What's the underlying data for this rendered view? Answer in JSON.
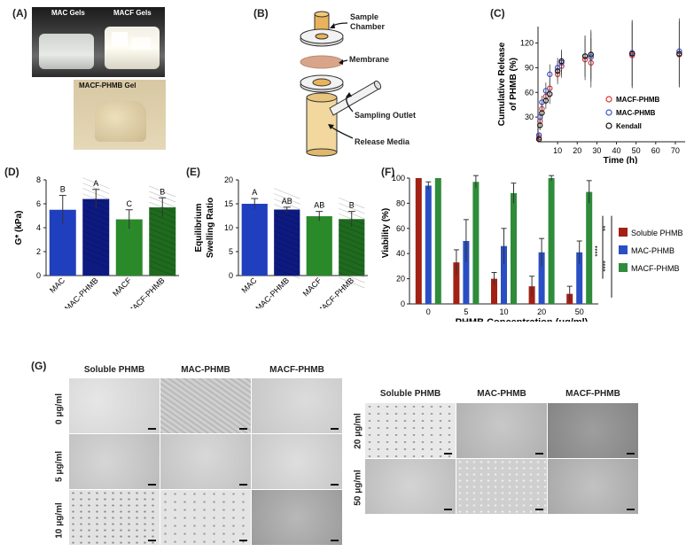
{
  "panels": {
    "A": {
      "label": "(A)",
      "photo1_labels": [
        "MAC Gels",
        "MACF Gels"
      ],
      "photo2_label": "MACF-PHMB Gel"
    },
    "B": {
      "label": "(B)",
      "callouts": [
        "Sample Chamber",
        "Membrane",
        "Sampling Outlet",
        "Release Media"
      ]
    },
    "C": {
      "label": "(C)",
      "ylabel_line1": "Cumulative Release",
      "ylabel_line2": "of PHMB (%)",
      "xlabel": "Time (h)",
      "legend": [
        "MACF-PHMB",
        "MAC-PHMB",
        "Kendall"
      ]
    },
    "D": {
      "label": "(D)",
      "ylabel": "G* (kPa)"
    },
    "E": {
      "label": "(E)",
      "ylabel_line1": "Equilibrium",
      "ylabel_line2": "Swelling Ratio"
    },
    "F": {
      "label": "(F)",
      "ylabel": "Viability (%)",
      "xlabel": "PHMB Concentration (μg/ml)",
      "legend": [
        "Soluble PHMB",
        "MAC-PHMB",
        "MACF-PHMB"
      ],
      "sig": [
        "**",
        "****",
        "****"
      ]
    },
    "G": {
      "label": "(G)",
      "left_cols": [
        "Soluble PHMB",
        "MAC-PHMB",
        "MACF-PHMB"
      ],
      "left_rows": [
        "0 μg/ml",
        "5 μg/ml",
        "10 μg/ml"
      ],
      "right_cols": [
        "Soluble PHMB",
        "MAC-PHMB",
        "MACF-PHMB"
      ],
      "right_rows": [
        "20 μg/ml",
        "50 μg/ml"
      ]
    }
  },
  "colors": {
    "mac": "#1f3fbf",
    "macphmb": "#0d1a80",
    "macf": "#2a8a2a",
    "macfphmb": "#1f6a1f",
    "soluble": "#a32015",
    "mac_f": "#2a4fc4",
    "macf_f": "#2e8c3a"
  },
  "chart_data": [
    {
      "id": "C",
      "type": "scatter",
      "xlabel": "Time (h)",
      "ylabel": "Cumulative Release of PHMB (%)",
      "xlim": [
        0,
        75
      ],
      "ylim": [
        0,
        140
      ],
      "xticks": [
        0,
        10,
        20,
        30,
        40,
        50,
        60,
        70
      ],
      "yticks": [
        0,
        30,
        60,
        90,
        120
      ],
      "xticklabels": [
        "10",
        "20",
        "30",
        "40",
        "50",
        "60",
        "70"
      ],
      "yticklabels": [
        "30",
        "60",
        "90",
        "120"
      ],
      "legend_position": "bottom-right",
      "series": [
        {
          "name": "MACF-PHMB",
          "color": "#e03030",
          "x": [
            0.5,
            1,
            2,
            4,
            6,
            10,
            12,
            24,
            27,
            48,
            72
          ],
          "y": [
            5,
            25,
            40,
            55,
            65,
            82,
            92,
            100,
            96,
            105,
            106
          ],
          "err": [
            3,
            6,
            8,
            10,
            12,
            12,
            14,
            25,
            30,
            40,
            40
          ]
        },
        {
          "name": "MAC-PHMB",
          "color": "#3a4fd0",
          "x": [
            0.5,
            1,
            2,
            4,
            6,
            10,
            12,
            24,
            27,
            48,
            72
          ],
          "y": [
            8,
            30,
            48,
            62,
            82,
            90,
            96,
            104,
            103,
            108,
            110
          ],
          "err": [
            3,
            6,
            8,
            10,
            12,
            12,
            14,
            25,
            30,
            40,
            40
          ]
        },
        {
          "name": "Kendall",
          "color": "#111111",
          "x": [
            0.5,
            1,
            2,
            4,
            6,
            10,
            12,
            24,
            27,
            48,
            72
          ],
          "y": [
            3,
            20,
            35,
            50,
            58,
            86,
            98,
            104,
            106,
            107,
            107
          ],
          "err": [
            3,
            6,
            8,
            10,
            12,
            12,
            14,
            25,
            30,
            40,
            40
          ]
        }
      ]
    },
    {
      "id": "D",
      "type": "bar",
      "ylabel": "G* (kPa)",
      "ylim": [
        0,
        8
      ],
      "yticks": [
        0,
        2,
        4,
        6,
        8
      ],
      "yticklabels": [
        "0",
        "2",
        "4",
        "6",
        "8"
      ],
      "categories": [
        "MAC",
        "MAC-PHMB",
        "MACF",
        "MACF-PHMB"
      ],
      "values": [
        5.5,
        6.4,
        4.7,
        5.7
      ],
      "errors": [
        1.2,
        0.8,
        0.8,
        0.8
      ],
      "letters": [
        "B",
        "A",
        "C",
        "B"
      ]
    },
    {
      "id": "E",
      "type": "bar",
      "ylabel": "Equilibrium Swelling Ratio",
      "ylim": [
        0,
        20
      ],
      "yticks": [
        0,
        5,
        10,
        15,
        20
      ],
      "yticklabels": [
        "0",
        "5",
        "10",
        "15",
        "20"
      ],
      "categories": [
        "MAC",
        "MAC-PHMB",
        "MACF",
        "MACF-PHMB"
      ],
      "values": [
        15.0,
        13.8,
        12.4,
        11.8
      ],
      "errors": [
        1.1,
        0.5,
        1.0,
        1.6
      ],
      "letters": [
        "A",
        "AB",
        "AB",
        "B"
      ]
    },
    {
      "id": "F",
      "type": "bar",
      "ylabel": "Viability (%)",
      "xlabel": "PHMB Concentration (μg/ml)",
      "ylim": [
        0,
        100
      ],
      "yticks": [
        0,
        20,
        40,
        60,
        80,
        100
      ],
      "yticklabels": [
        "0",
        "20",
        "40",
        "60",
        "80",
        "100"
      ],
      "categories": [
        "0",
        "5",
        "10",
        "20",
        "50"
      ],
      "series": [
        {
          "name": "Soluble PHMB",
          "values": [
            100,
            33,
            20,
            14,
            8
          ],
          "errors": [
            0,
            10,
            5,
            8,
            6
          ]
        },
        {
          "name": "MAC-PHMB",
          "values": [
            94,
            50,
            46,
            41,
            41
          ],
          "errors": [
            3,
            17,
            14,
            11,
            9
          ]
        },
        {
          "name": "MACF-PHMB",
          "values": [
            100,
            97,
            88,
            100,
            89
          ],
          "errors": [
            0,
            5,
            8,
            2,
            9
          ]
        }
      ]
    }
  ]
}
